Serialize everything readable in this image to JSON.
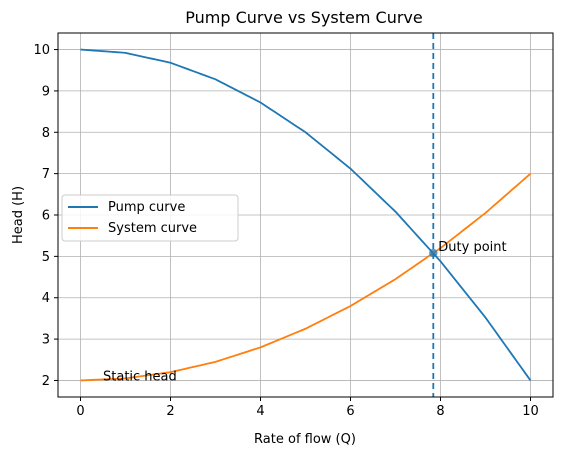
{
  "chart_data": {
    "type": "line",
    "title": "Pump Curve vs System Curve",
    "xlabel": "Rate of flow (Q)",
    "ylabel": "Head (H)",
    "xlim": [
      -0.5,
      10.5
    ],
    "ylim": [
      1.6,
      10.4
    ],
    "xticks": [
      0,
      2,
      4,
      6,
      8,
      10
    ],
    "yticks": [
      2,
      3,
      4,
      5,
      6,
      7,
      8,
      9,
      10
    ],
    "grid": true,
    "legend_position": "center-left",
    "series": [
      {
        "name": "Pump curve",
        "color": "#1f77b4",
        "x": [
          0,
          1,
          2,
          3,
          4,
          5,
          6,
          7,
          8,
          9,
          10
        ],
        "y": [
          10.0,
          9.92,
          9.68,
          9.28,
          8.72,
          8.0,
          7.12,
          6.08,
          4.88,
          3.52,
          2.0
        ]
      },
      {
        "name": "System curve",
        "color": "#ff7f0e",
        "x": [
          0,
          1,
          2,
          3,
          4,
          5,
          6,
          7,
          8,
          9,
          10
        ],
        "y": [
          2.0,
          2.05,
          2.2,
          2.45,
          2.8,
          3.25,
          3.8,
          4.45,
          5.2,
          6.05,
          7.0
        ]
      }
    ],
    "duty_point": {
      "x": 7.84,
      "y": 5.08,
      "color": "#1f77b4",
      "label": "Duty point"
    },
    "vline": {
      "x": 7.84,
      "color": "#1f77b4",
      "style": "dashed"
    },
    "annotations": [
      {
        "text": "Static head",
        "x": 0.5,
        "y": 2.1
      }
    ]
  }
}
